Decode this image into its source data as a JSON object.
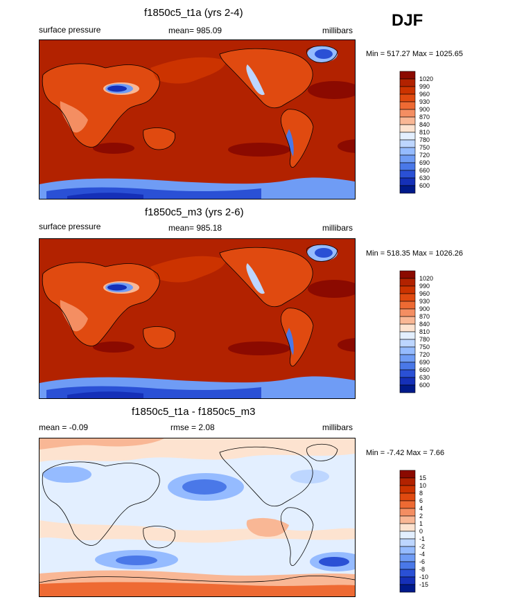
{
  "season": "DJF",
  "panels": [
    {
      "id": "t1a",
      "title": "f1850c5_t1a (yrs 2-4)",
      "left_label": "surface pressure",
      "center_label": "mean= 985.09",
      "right_label": "millibars",
      "minmax": "Min = 517.27 Max = 1025.65",
      "colorbar": {
        "levels": [
          "1020",
          "990",
          "960",
          "930",
          "900",
          "870",
          "840",
          "810",
          "780",
          "750",
          "720",
          "690",
          "660",
          "630",
          "600"
        ],
        "colors": [
          "#8b0a00",
          "#b22200",
          "#cc3300",
          "#e04a10",
          "#ee6a33",
          "#f48e62",
          "#f9b795",
          "#fde3d0",
          "#e3efff",
          "#bdd6ff",
          "#95bbff",
          "#6f9cf5",
          "#4a78e8",
          "#2a50d5",
          "#1530b8",
          "#001a8a"
        ]
      }
    },
    {
      "id": "m3",
      "title": "f1850c5_m3 (yrs 2-6)",
      "left_label": "surface pressure",
      "center_label": "mean= 985.18",
      "right_label": "millibars",
      "minmax": "Min = 518.35 Max = 1026.26",
      "colorbar": {
        "levels": [
          "1020",
          "990",
          "960",
          "930",
          "900",
          "870",
          "840",
          "810",
          "780",
          "750",
          "720",
          "690",
          "660",
          "630",
          "600"
        ],
        "colors": [
          "#8b0a00",
          "#b22200",
          "#cc3300",
          "#e04a10",
          "#ee6a33",
          "#f48e62",
          "#f9b795",
          "#fde3d0",
          "#e3efff",
          "#bdd6ff",
          "#95bbff",
          "#6f9cf5",
          "#4a78e8",
          "#2a50d5",
          "#1530b8",
          "#001a8a"
        ]
      }
    },
    {
      "id": "diff",
      "title": "f1850c5_t1a - f1850c5_m3",
      "left_label": "mean =  -0.09",
      "center_label": "rmse =   2.08",
      "right_label": "millibars",
      "minmax": "Min =  -7.42 Max =   7.66",
      "colorbar": {
        "levels": [
          "15",
          "10",
          "8",
          "6",
          "4",
          "2",
          "1",
          "0",
          "-1",
          "-2",
          "-4",
          "-6",
          "-8",
          "-10",
          "-15"
        ],
        "colors": [
          "#8b0a00",
          "#b22200",
          "#cc3300",
          "#e04a10",
          "#ee6a33",
          "#f48e62",
          "#f9b795",
          "#fde3d0",
          "#e3efff",
          "#bdd6ff",
          "#95bbff",
          "#6f9cf5",
          "#4a78e8",
          "#2a50d5",
          "#1530b8",
          "#001a8a"
        ]
      }
    }
  ],
  "chart_data": [
    {
      "type": "heatmap",
      "title": "f1850c5_t1a (yrs 2-4)",
      "variable": "surface pressure",
      "units": "millibars",
      "mean": 985.09,
      "min": 517.27,
      "max": 1025.65,
      "contour_levels": [
        600,
        630,
        660,
        690,
        720,
        750,
        780,
        810,
        840,
        870,
        900,
        930,
        960,
        990,
        1020
      ],
      "season": "DJF"
    },
    {
      "type": "heatmap",
      "title": "f1850c5_m3 (yrs 2-6)",
      "variable": "surface pressure",
      "units": "millibars",
      "mean": 985.18,
      "min": 518.35,
      "max": 1026.26,
      "contour_levels": [
        600,
        630,
        660,
        690,
        720,
        750,
        780,
        810,
        840,
        870,
        900,
        930,
        960,
        990,
        1020
      ],
      "season": "DJF"
    },
    {
      "type": "heatmap",
      "title": "f1850c5_t1a - f1850c5_m3",
      "units": "millibars",
      "mean": -0.09,
      "rmse": 2.08,
      "min": -7.42,
      "max": 7.66,
      "contour_levels": [
        -15,
        -10,
        -8,
        -6,
        -4,
        -2,
        -1,
        0,
        1,
        2,
        4,
        6,
        8,
        10,
        15
      ],
      "season": "DJF"
    }
  ]
}
